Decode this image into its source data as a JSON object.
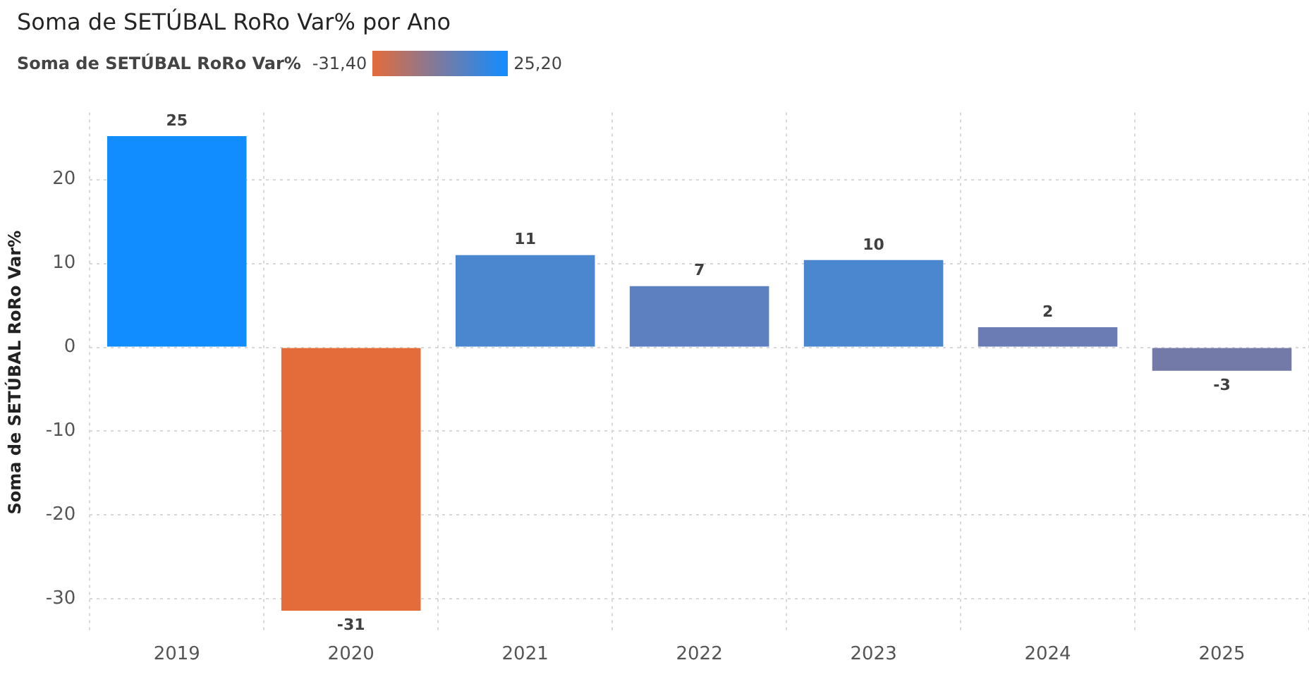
{
  "chart_data": {
    "type": "bar",
    "title": "Soma de SETÚBAL RoRo Var% por Ano",
    "ylabel": "Soma de SETÚBAL RoRo Var%",
    "clabel": "Soma de SETÚBAL RoRo Var%",
    "categories": [
      "2019",
      "2020",
      "2021",
      "2022",
      "2023",
      "2024",
      "2025"
    ],
    "values": [
      25.2,
      -31.4,
      11.0,
      7.3,
      10.4,
      2.4,
      -2.8
    ],
    "colors": [
      "#118dff",
      "#e46c3a",
      "#4a87cf",
      "#5d80c0",
      "#4a87cf",
      "#6b7cb4",
      "#737aa8"
    ],
    "value_labels": [
      "25",
      "-31",
      "11",
      "7",
      "10",
      "2",
      "-3"
    ],
    "annotations": [
      "-31,40",
      "25,20"
    ],
    "ylim": [
      -34,
      28
    ],
    "yticks": [
      -30,
      -20,
      -10,
      0,
      10,
      20
    ],
    "grid": true
  }
}
